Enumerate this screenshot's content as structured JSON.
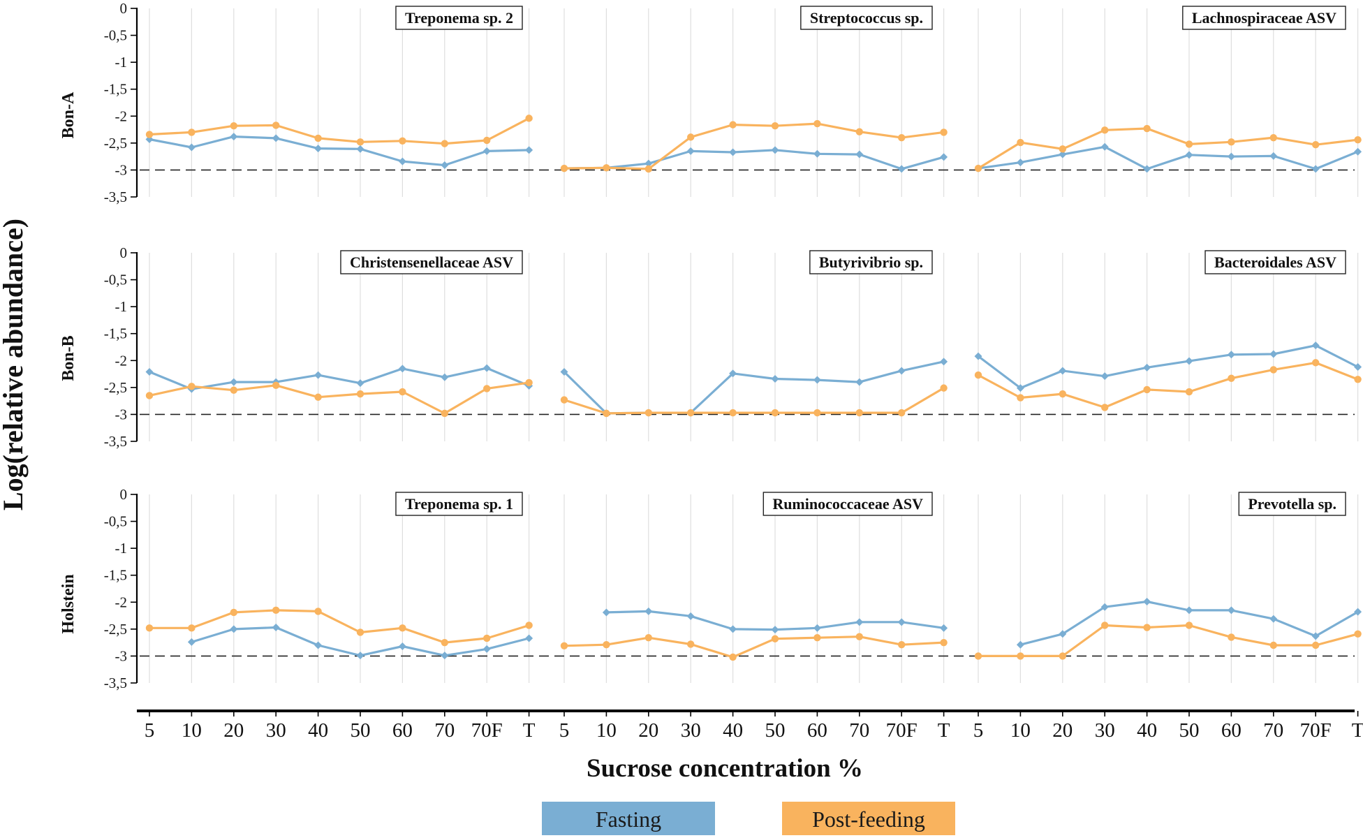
{
  "chart_data": {
    "type": "line",
    "ylabel": "Log(relative abundance)",
    "xlabel": "Sucrose concentration %",
    "ylim": [
      -3.5,
      0
    ],
    "y_ticks": [
      "0",
      "-0,5",
      "-1",
      "-1,5",
      "-2",
      "-2,5",
      "-3",
      "-3,5"
    ],
    "y_tick_values": [
      0,
      -0.5,
      -1,
      -1.5,
      -2,
      -2.5,
      -3,
      -3.5
    ],
    "reference_line": -3,
    "categories": [
      "5",
      "10",
      "20",
      "30",
      "40",
      "50",
      "60",
      "70",
      "70F",
      "T"
    ],
    "legend": [
      {
        "name": "Fasting",
        "color": "#7aaed3"
      },
      {
        "name": "Post-feeding",
        "color": "#f9b35e"
      }
    ],
    "rows": [
      "Bon-A",
      "Bon-B",
      "Holstein"
    ],
    "panels": [
      {
        "row": 0,
        "col": 0,
        "title": "Treponema sp. 2",
        "series": [
          {
            "name": "Fasting",
            "values": [
              -2.43,
              -2.58,
              -2.38,
              -2.41,
              -2.6,
              -2.61,
              -2.84,
              -2.91,
              -2.65,
              -2.63
            ]
          },
          {
            "name": "Post-feeding",
            "values": [
              -2.34,
              -2.3,
              -2.18,
              -2.17,
              -2.41,
              -2.48,
              -2.46,
              -2.51,
              -2.45,
              -2.04
            ]
          }
        ]
      },
      {
        "row": 0,
        "col": 1,
        "title": "Streptococcus  sp.",
        "series": [
          {
            "name": "Fasting",
            "values": [
              -2.97,
              -2.96,
              -2.88,
              -2.65,
              -2.67,
              -2.63,
              -2.7,
              -2.71,
              -2.98,
              -2.76
            ]
          },
          {
            "name": "Post-feeding",
            "values": [
              -2.97,
              -2.96,
              -2.98,
              -2.39,
              -2.16,
              -2.18,
              -2.14,
              -2.29,
              -2.4,
              -2.3
            ]
          }
        ]
      },
      {
        "row": 0,
        "col": 2,
        "title": "Lachnospiraceae ASV",
        "series": [
          {
            "name": "Fasting",
            "values": [
              -2.97,
              -2.86,
              -2.71,
              -2.57,
              -2.98,
              -2.72,
              -2.75,
              -2.74,
              -2.98,
              -2.66
            ]
          },
          {
            "name": "Post-feeding",
            "values": [
              -2.97,
              -2.49,
              -2.61,
              -2.26,
              -2.23,
              -2.52,
              -2.48,
              -2.4,
              -2.53,
              -2.44
            ]
          }
        ]
      },
      {
        "row": 1,
        "col": 0,
        "title": "Christensenellaceae ASV",
        "series": [
          {
            "name": "Fasting",
            "values": [
              -2.21,
              -2.53,
              -2.4,
              -2.4,
              -2.27,
              -2.42,
              -2.15,
              -2.31,
              -2.14,
              -2.47
            ]
          },
          {
            "name": "Post-feeding",
            "values": [
              -2.65,
              -2.48,
              -2.55,
              -2.46,
              -2.68,
              -2.62,
              -2.58,
              -2.98,
              -2.52,
              -2.41
            ]
          }
        ]
      },
      {
        "row": 1,
        "col": 1,
        "title": "Butyrivibrio sp.",
        "series": [
          {
            "name": "Fasting",
            "values": [
              -2.21,
              -2.98,
              -2.97,
              -2.97,
              -2.24,
              -2.34,
              -2.36,
              -2.4,
              -2.19,
              -2.02
            ]
          },
          {
            "name": "Post-feeding",
            "values": [
              -2.73,
              -2.98,
              -2.97,
              -2.97,
              -2.97,
              -2.97,
              -2.97,
              -2.97,
              -2.97,
              -2.51
            ]
          }
        ]
      },
      {
        "row": 1,
        "col": 2,
        "title": "Bacteroidales ASV",
        "series": [
          {
            "name": "Fasting",
            "values": [
              -1.92,
              -2.51,
              -2.19,
              -2.29,
              -2.13,
              -2.01,
              -1.89,
              -1.88,
              -1.72,
              -2.12
            ]
          },
          {
            "name": "Post-feeding",
            "values": [
              -2.27,
              -2.69,
              -2.62,
              -2.87,
              -2.54,
              -2.58,
              -2.33,
              -2.17,
              -2.04,
              -2.35
            ]
          }
        ]
      },
      {
        "row": 2,
        "col": 0,
        "title": "Treponema sp. 1",
        "series": [
          {
            "name": "Fasting",
            "values": [
              null,
              -2.74,
              -2.5,
              -2.47,
              -2.8,
              -2.99,
              -2.82,
              -2.99,
              -2.87,
              -2.67
            ]
          },
          {
            "name": "Post-feeding",
            "values": [
              -2.48,
              -2.48,
              -2.19,
              -2.15,
              -2.17,
              -2.56,
              -2.48,
              -2.75,
              -2.67,
              -2.43
            ]
          }
        ]
      },
      {
        "row": 2,
        "col": 1,
        "title": "Ruminococcaceae ASV",
        "series": [
          {
            "name": "Fasting",
            "values": [
              null,
              -2.19,
              -2.17,
              -2.26,
              -2.5,
              -2.51,
              -2.48,
              -2.37,
              -2.37,
              -2.48
            ]
          },
          {
            "name": "Post-feeding",
            "values": [
              -2.81,
              -2.79,
              -2.66,
              -2.78,
              -3.02,
              -2.68,
              -2.66,
              -2.64,
              -2.79,
              -2.75
            ]
          }
        ]
      },
      {
        "row": 2,
        "col": 2,
        "title": "Prevotella sp.",
        "series": [
          {
            "name": "Fasting",
            "values": [
              null,
              -2.79,
              -2.59,
              -2.09,
              -1.99,
              -2.15,
              -2.15,
              -2.31,
              -2.63,
              -2.18
            ]
          },
          {
            "name": "Post-feeding",
            "values": [
              -3.0,
              -3.0,
              -3.0,
              -2.43,
              -2.47,
              -2.43,
              -2.65,
              -2.8,
              -2.8,
              -2.59
            ]
          }
        ]
      }
    ]
  }
}
